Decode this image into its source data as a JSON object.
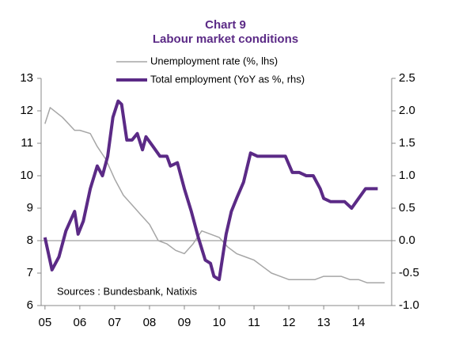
{
  "chart_data": {
    "type": "line",
    "title": "Chart 9",
    "subtitle": "Labour market conditions",
    "annotation": "Sources :  Bundesbank, Natixis",
    "xlim": [
      2004.89,
      2014.95
    ],
    "xticks": [
      {
        "value": 2005,
        "label": "05"
      },
      {
        "value": 2006,
        "label": "06"
      },
      {
        "value": 2007,
        "label": "07"
      },
      {
        "value": 2008,
        "label": "08"
      },
      {
        "value": 2009,
        "label": "09"
      },
      {
        "value": 2010,
        "label": "10"
      },
      {
        "value": 2011,
        "label": "11"
      },
      {
        "value": 2012,
        "label": "12"
      },
      {
        "value": 2013,
        "label": "13"
      },
      {
        "value": 2014,
        "label": "14"
      }
    ],
    "ylim": [
      6,
      13
    ],
    "yticks": [
      6,
      7,
      8,
      9,
      10,
      11,
      12,
      13
    ],
    "y2lim": [
      -1,
      2.5
    ],
    "y2ticks": [
      {
        "value": -1,
        "label": "-1.0"
      },
      -0.5,
      {
        "value": 0,
        "label": "0.0"
      },
      0.5,
      {
        "value": 1,
        "label": "1.0"
      },
      1.5,
      {
        "value": 2,
        "label": "2.0"
      },
      2.5
    ],
    "series": [
      {
        "name": "Unemployment rate (%, lhs)",
        "color": "#a6a6a6",
        "width": 1.5,
        "x": [
          2005.0,
          2005.15,
          2005.5,
          2005.85,
          2006.0,
          2006.3,
          2006.5,
          2006.75,
          2007.0,
          2007.25,
          2007.5,
          2007.75,
          2008.0,
          2008.25,
          2008.5,
          2008.75,
          2009.0,
          2009.25,
          2009.5,
          2009.75,
          2010.0,
          2010.25,
          2010.5,
          2010.75,
          2011.0,
          2011.25,
          2011.5,
          2011.75,
          2012.0,
          2012.5,
          2012.75,
          2013.0,
          2013.5,
          2013.75,
          2014.0,
          2014.25,
          2014.5,
          2014.75
        ],
        "values": [
          11.6,
          12.1,
          11.8,
          11.4,
          11.4,
          11.3,
          10.9,
          10.5,
          9.9,
          9.4,
          9.1,
          8.8,
          8.5,
          8.0,
          7.9,
          7.7,
          7.6,
          7.9,
          8.3,
          8.2,
          8.1,
          7.8,
          7.6,
          7.5,
          7.4,
          7.2,
          7.0,
          6.9,
          6.8,
          6.8,
          6.8,
          6.9,
          6.9,
          6.8,
          6.8,
          6.7,
          6.7,
          6.7
        ]
      },
      {
        "name": "Total employment (YoY as %, rhs)",
        "color": "#5b2a86",
        "width": 4,
        "axis": "y2",
        "x": [
          2005.0,
          2005.2,
          2005.4,
          2005.6,
          2005.85,
          2005.95,
          2006.1,
          2006.3,
          2006.5,
          2006.65,
          2006.8,
          2006.95,
          2007.1,
          2007.2,
          2007.35,
          2007.5,
          2007.65,
          2007.8,
          2007.9,
          2008.1,
          2008.3,
          2008.5,
          2008.6,
          2008.8,
          2009.0,
          2009.2,
          2009.4,
          2009.6,
          2009.75,
          2009.85,
          2010.0,
          2010.2,
          2010.35,
          2010.5,
          2010.7,
          2010.9,
          2011.1,
          2011.3,
          2011.5,
          2011.75,
          2011.9,
          2012.1,
          2012.3,
          2012.5,
          2012.7,
          2012.9,
          2013.0,
          2013.2,
          2013.4,
          2013.6,
          2013.8,
          2014.0,
          2014.2,
          2014.4,
          2014.55
        ],
        "values": [
          0.05,
          -0.45,
          -0.25,
          0.15,
          0.45,
          0.1,
          0.3,
          0.8,
          1.15,
          1.0,
          1.3,
          1.9,
          2.15,
          2.1,
          1.55,
          1.55,
          1.65,
          1.4,
          1.6,
          1.45,
          1.3,
          1.3,
          1.15,
          1.2,
          0.8,
          0.45,
          0.05,
          -0.3,
          -0.35,
          -0.55,
          -0.6,
          0.1,
          0.45,
          0.65,
          0.9,
          1.35,
          1.3,
          1.3,
          1.3,
          1.3,
          1.3,
          1.05,
          1.05,
          1.0,
          1.0,
          0.8,
          0.65,
          0.6,
          0.6,
          0.6,
          0.5,
          0.65,
          0.8,
          0.8,
          0.8
        ]
      }
    ]
  }
}
